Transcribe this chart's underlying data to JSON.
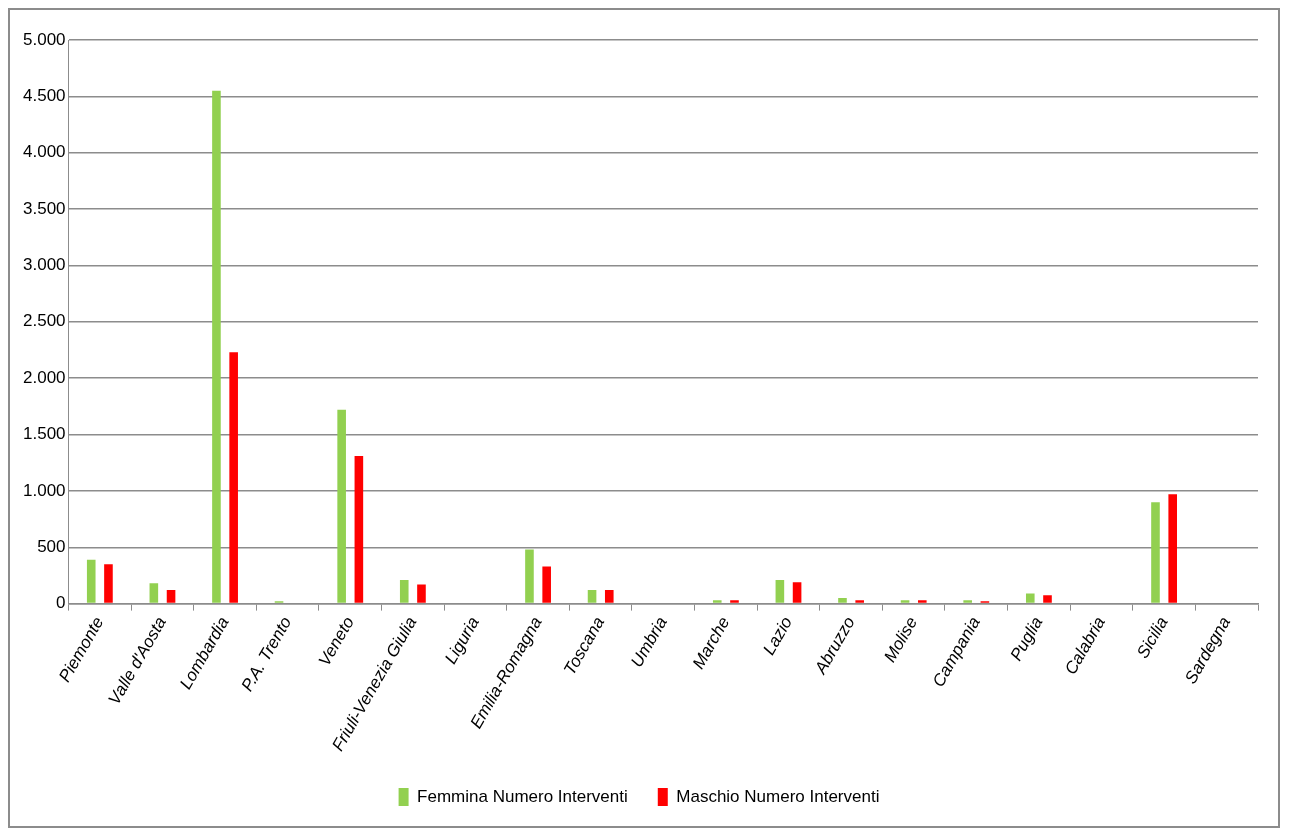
{
  "chart_data": {
    "type": "bar",
    "categories": [
      "Piemonte",
      "Valle d'Aosta",
      "Lombardia",
      "P.A. Trento",
      "Veneto",
      "Friuli-Venezia Giulia",
      "Liguria",
      "Emilia-Romagna",
      "Toscana",
      "Umbria",
      "Marche",
      "Lazio",
      "Abruzzo",
      "Molise",
      "Campania",
      "Puglia",
      "Calabria",
      "Sicilia",
      "Sardegna"
    ],
    "series": [
      {
        "name": "Femmina Numero Interventi",
        "color": "#92d050",
        "values": [
          390,
          180,
          4550,
          20,
          1720,
          210,
          0,
          480,
          120,
          0,
          30,
          210,
          50,
          30,
          30,
          90,
          0,
          900,
          0
        ]
      },
      {
        "name": "Maschio Numero Interventi",
        "color": "#ff0000",
        "values": [
          350,
          120,
          2230,
          0,
          1310,
          170,
          0,
          330,
          120,
          0,
          30,
          190,
          30,
          30,
          20,
          75,
          0,
          970,
          0
        ]
      }
    ],
    "ylim": [
      0,
      5000
    ],
    "yticks": [
      {
        "value": 0,
        "label": "0"
      },
      {
        "value": 500,
        "label": "500"
      },
      {
        "value": 1000,
        "label": "1.000"
      },
      {
        "value": 1500,
        "label": "1.500"
      },
      {
        "value": 2000,
        "label": "2.000"
      },
      {
        "value": 2500,
        "label": "2.500"
      },
      {
        "value": 3000,
        "label": "3.000"
      },
      {
        "value": 3500,
        "label": "3.500"
      },
      {
        "value": 4000,
        "label": "4.000"
      },
      {
        "value": 4500,
        "label": "4.500"
      },
      {
        "value": 5000,
        "label": "5.000"
      }
    ],
    "grid": "y",
    "legend": "bottom"
  }
}
